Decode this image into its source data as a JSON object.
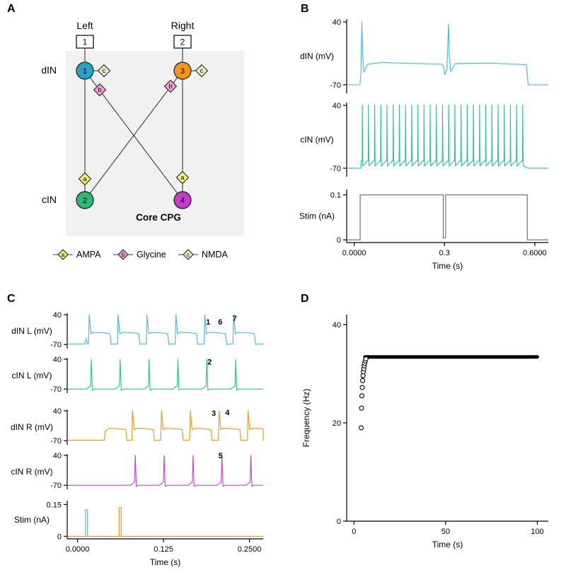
{
  "panels": {
    "a": "A",
    "b": "B",
    "c": "C",
    "d": "D"
  },
  "colors": {
    "din_l": "#4ab9db",
    "cin_l": "#2cc493",
    "din_r": "#f5941e",
    "cin_r": "#cc41d3",
    "stim": "#6a6a6a",
    "neuron1": "#2ba3c7",
    "neuron2": "#2db873",
    "neuron3": "#f5941e",
    "neuron4": "#c13ecb",
    "ampa": "#f4ee7d",
    "glycine": "#f09fd6",
    "nmda": "#def0c9",
    "box_bg": "#f1f1f2"
  },
  "panel_a": {
    "left": "Left",
    "right": "Right",
    "box1": "1",
    "box2": "2",
    "din": "dIN",
    "cin": "cIN",
    "core": "Core CPG",
    "neuron_numbers": {
      "n1": "1",
      "n2": "2",
      "n3": "3",
      "n4": "4"
    },
    "syn": {
      "a": "a",
      "b": "b",
      "c": "c"
    },
    "legend": [
      {
        "letter": "a",
        "label": "AMPA"
      },
      {
        "letter": "b",
        "label": "Glycine"
      },
      {
        "letter": "c",
        "label": "NMDA"
      }
    ]
  },
  "chart_data": [
    {
      "id": "B",
      "type": "line",
      "xlabel": "Time (s)",
      "xlim": [
        -0.025,
        0.645
      ],
      "xticks": [
        {
          "v": 0,
          "label": "0.0000"
        },
        {
          "v": 0.3,
          "label": "0.3"
        },
        {
          "v": 0.6,
          "label": "0.6000"
        }
      ],
      "subplots": [
        {
          "ylabel": "dIN (mV)",
          "ylim": [
            -85,
            45
          ],
          "yticks": [
            {
              "v": 40,
              "label": "40"
            },
            {
              "v": -70,
              "label": "-70"
            }
          ],
          "traces": [
            {
              "type": "points",
              "color_key": "din_l",
              "points": [
                [
                  -0.025,
                  -70
                ],
                [
                  0.019,
                  -70
                ],
                [
                  0.022,
                  -52
                ],
                [
                  0.0255,
                  40
                ],
                [
                  0.028,
                  -15
                ],
                [
                  0.032,
                  -48
                ],
                [
                  0.045,
                  -34
                ],
                [
                  0.09,
                  -31
                ],
                [
                  0.29,
                  -34
                ],
                [
                  0.297,
                  -37
                ],
                [
                  0.301,
                  -52
                ],
                [
                  0.308,
                  -45
                ],
                [
                  0.3135,
                  36
                ],
                [
                  0.316,
                  -18
                ],
                [
                  0.321,
                  -47
                ],
                [
                  0.335,
                  -33
                ],
                [
                  0.45,
                  -32
                ],
                [
                  0.572,
                  -35
                ],
                [
                  0.578,
                  -70
                ],
                [
                  0.645,
                  -70
                ]
              ]
            }
          ]
        },
        {
          "ylabel": "cIN (mV)",
          "ylim": [
            -85,
            45
          ],
          "yticks": [
            {
              "v": 40,
              "label": "40"
            },
            {
              "v": -70,
              "label": "-70"
            }
          ],
          "traces": [
            {
              "type": "spiketrain",
              "color_key": "cin_l",
              "start": 0.027,
              "end": 0.572,
              "period": 0.0205,
              "rest": -70,
              "base": -57,
              "trough": -66,
              "peak": 41
            }
          ]
        },
        {
          "ylabel": "Stim (nA)",
          "ylim": [
            -0.006,
            0.112
          ],
          "yticks": [
            {
              "v": 0.1,
              "label": "0.1"
            },
            {
              "v": 0,
              "label": "0"
            }
          ],
          "traces": [
            {
              "type": "points",
              "color_key": "stim",
              "points": [
                [
                  -0.025,
                  0
                ],
                [
                  0.02,
                  0
                ],
                [
                  0.02,
                  0.1
                ],
                [
                  0.296,
                  0.1
                ],
                [
                  0.296,
                  0.004
                ],
                [
                  0.304,
                  0.004
                ],
                [
                  0.304,
                  0.1
                ],
                [
                  0.575,
                  0.1
                ],
                [
                  0.575,
                  0
                ],
                [
                  0.645,
                  0
                ]
              ]
            }
          ]
        }
      ]
    },
    {
      "id": "C",
      "type": "line",
      "xlabel": "Time (s)",
      "xlim": [
        -0.015,
        0.27
      ],
      "xticks": [
        {
          "v": 0,
          "label": "0.0000"
        },
        {
          "v": 0.125,
          "label": "0.125"
        },
        {
          "v": 0.25,
          "label": "0.2500"
        }
      ],
      "subplots": [
        {
          "ylabel": "dIN L (mV)",
          "ylim": [
            -85,
            45
          ],
          "yticks": [
            {
              "v": 40,
              "label": "40"
            },
            {
              "v": -70,
              "label": "-70"
            }
          ],
          "traces": [
            {
              "type": "plateau",
              "color_key": "din_l",
              "onsets": [
                0.017,
                0.059,
                0.101,
                0.143,
                0.185,
                0.227
              ],
              "peak": 40,
              "plateau": -25,
              "dur": 0.03,
              "rest": -68,
              "artifact": [
                [
                  0.0125,
                  -47
                ]
              ]
            }
          ],
          "annotations": [
            {
              "t": 0.19,
              "v": 4,
              "text": "1"
            },
            {
              "t": 0.2075,
              "v": 4,
              "text": "6"
            },
            {
              "t": 0.2285,
              "v": 16,
              "text": "7"
            }
          ]
        },
        {
          "ylabel": "cIN L (mV)",
          "ylim": [
            -85,
            45
          ],
          "yticks": [
            {
              "v": 40,
              "label": "40"
            },
            {
              "v": -70,
              "label": "-70"
            }
          ],
          "traces": [
            {
              "type": "spikes",
              "color_key": "cin_l",
              "times": [
                0.02,
                0.062,
                0.104,
                0.146,
                0.188,
                0.23
              ],
              "rest": -70,
              "peak": 40
            }
          ],
          "annotations": [
            {
              "t": 0.192,
              "v": 20,
              "text": "2"
            }
          ]
        },
        {
          "ylabel": "dIN R (mV)",
          "ylim": [
            -85,
            45
          ],
          "yticks": [
            {
              "v": 40,
              "label": "40"
            },
            {
              "v": -70,
              "label": "-70"
            }
          ],
          "traces": [
            {
              "type": "plateau",
              "color_key": "din_r",
              "onsets": [
                0.04,
                0.08,
                0.122,
                0.164,
                0.206,
                0.248
              ],
              "peak": 40,
              "plateau": -24,
              "dur": 0.03,
              "rest": -68,
              "first_peak": -36
            }
          ],
          "annotations": [
            {
              "t": 0.198,
              "v": 22,
              "text": "3"
            },
            {
              "t": 0.218,
              "v": 24,
              "text": "4"
            }
          ]
        },
        {
          "ylabel": "cIN R (mV)",
          "ylim": [
            -85,
            45
          ],
          "yticks": [
            {
              "v": 40,
              "label": "40"
            },
            {
              "v": -70,
              "label": "-70"
            }
          ],
          "traces": [
            {
              "type": "spikes",
              "color_key": "cin_r",
              "times": [
                0.084,
                0.126,
                0.168,
                0.21,
                0.252
              ],
              "rest": -70,
              "peak": 40
            }
          ],
          "annotations": [
            {
              "t": 0.208,
              "v": 30,
              "text": "5"
            }
          ]
        },
        {
          "ylabel": "Stim (nA)",
          "ylim": [
            -0.012,
            0.168
          ],
          "yticks": [
            {
              "v": 0.15,
              "label": "0.15"
            },
            {
              "v": 0,
              "label": "0"
            }
          ],
          "traces": [
            {
              "type": "points",
              "color_key": "din_r",
              "points": [
                [
                  -0.015,
                  0
                ],
                [
                  0.27,
                  0
                ]
              ]
            },
            {
              "type": "points",
              "color_key": "din_l",
              "points": [
                [
                  0.0115,
                  0
                ],
                [
                  0.0115,
                  0.125
                ],
                [
                  0.0145,
                  0.125
                ],
                [
                  0.0145,
                  0
                ]
              ]
            },
            {
              "type": "points",
              "color_key": "din_r",
              "points": [
                [
                  0.0605,
                  0
                ],
                [
                  0.0605,
                  0.135
                ],
                [
                  0.0635,
                  0.135
                ],
                [
                  0.0635,
                  0
                ]
              ]
            }
          ]
        }
      ]
    },
    {
      "id": "D",
      "type": "scatter",
      "xlabel": "Time (s)",
      "ylabel": "Frequency (Hz)",
      "xlim": [
        -4,
        106
      ],
      "ylim": [
        0,
        42
      ],
      "xticks": [
        {
          "v": 0,
          "label": "0"
        },
        {
          "v": 50,
          "label": "50"
        },
        {
          "v": 100,
          "label": "100"
        }
      ],
      "yticks": [
        {
          "v": 0,
          "label": "0"
        },
        {
          "v": 20,
          "label": "20"
        },
        {
          "v": 40,
          "label": "40"
        }
      ],
      "rise_points": [
        [
          3.9,
          19
        ],
        [
          4.1,
          23
        ],
        [
          4.3,
          25.5
        ],
        [
          4.5,
          27.2
        ],
        [
          4.7,
          28.6
        ],
        [
          4.9,
          29.6
        ],
        [
          5.1,
          30.4
        ],
        [
          5.3,
          31
        ],
        [
          5.5,
          31.6
        ],
        [
          5.8,
          32.1
        ],
        [
          6.1,
          32.6
        ],
        [
          6.5,
          33
        ]
      ],
      "plateau": {
        "from": 6,
        "to": 100,
        "value": 33.4
      }
    }
  ]
}
